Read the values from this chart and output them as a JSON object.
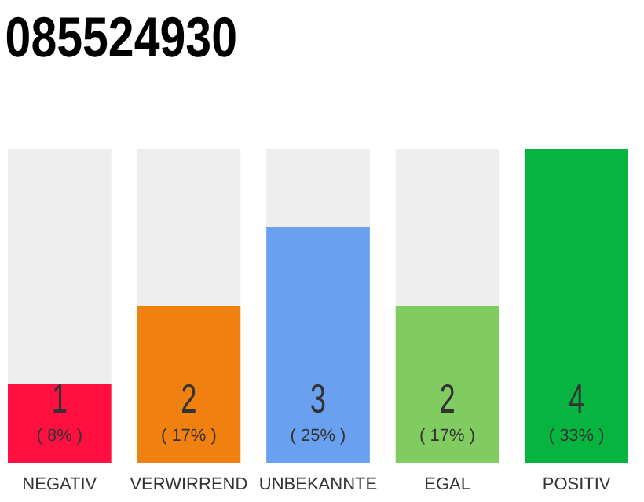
{
  "chart_data": {
    "type": "bar",
    "title": "085524930",
    "categories": [
      "NEGATIV",
      "VERWIRREND",
      "UNBEKANNTE",
      "EGAL",
      "POSITIV"
    ],
    "values": [
      1,
      2,
      3,
      2,
      4
    ],
    "colors": [
      "#ff1040",
      "#f08010",
      "#6aa0f0",
      "#80cc60",
      "#08b440"
    ],
    "value_labels": [
      "1\n( 8% )",
      "2\n( 17% )",
      "3\n( 25% )",
      "2\n( 17% )",
      "4\n( 33% )"
    ],
    "tick_labels": "x"
  }
}
